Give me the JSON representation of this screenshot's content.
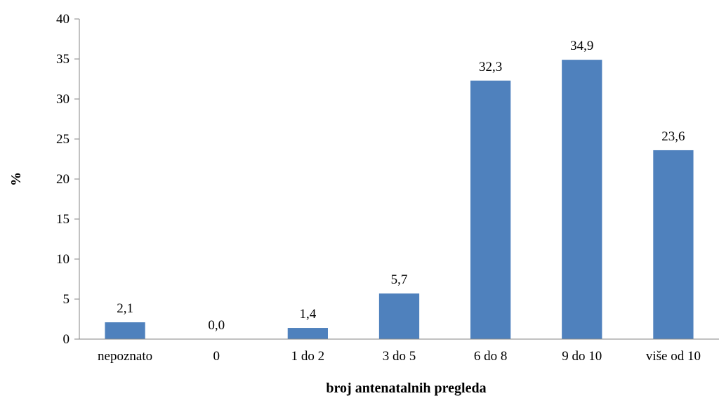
{
  "chart_data": {
    "type": "bar",
    "title": "",
    "xlabel": "broj antenatalnih pregleda",
    "ylabel": "%",
    "ylim": [
      0,
      40
    ],
    "yticks": [
      0,
      5,
      10,
      15,
      20,
      25,
      30,
      35,
      40
    ],
    "grid": false,
    "legend": "none",
    "categories": [
      "nepoznato",
      "0",
      "1 do 2",
      "3  do 5",
      "6 do 8",
      "9 do 10",
      "više od 10"
    ],
    "values": [
      2.1,
      0.0,
      1.4,
      5.7,
      32.3,
      34.9,
      23.6
    ],
    "data_labels": [
      "2,1",
      "0,0",
      "1,4",
      "5,7",
      "32,3",
      "34,9",
      "23,6"
    ],
    "bar_color": "#4f81bd",
    "axis_color": "#868686"
  }
}
